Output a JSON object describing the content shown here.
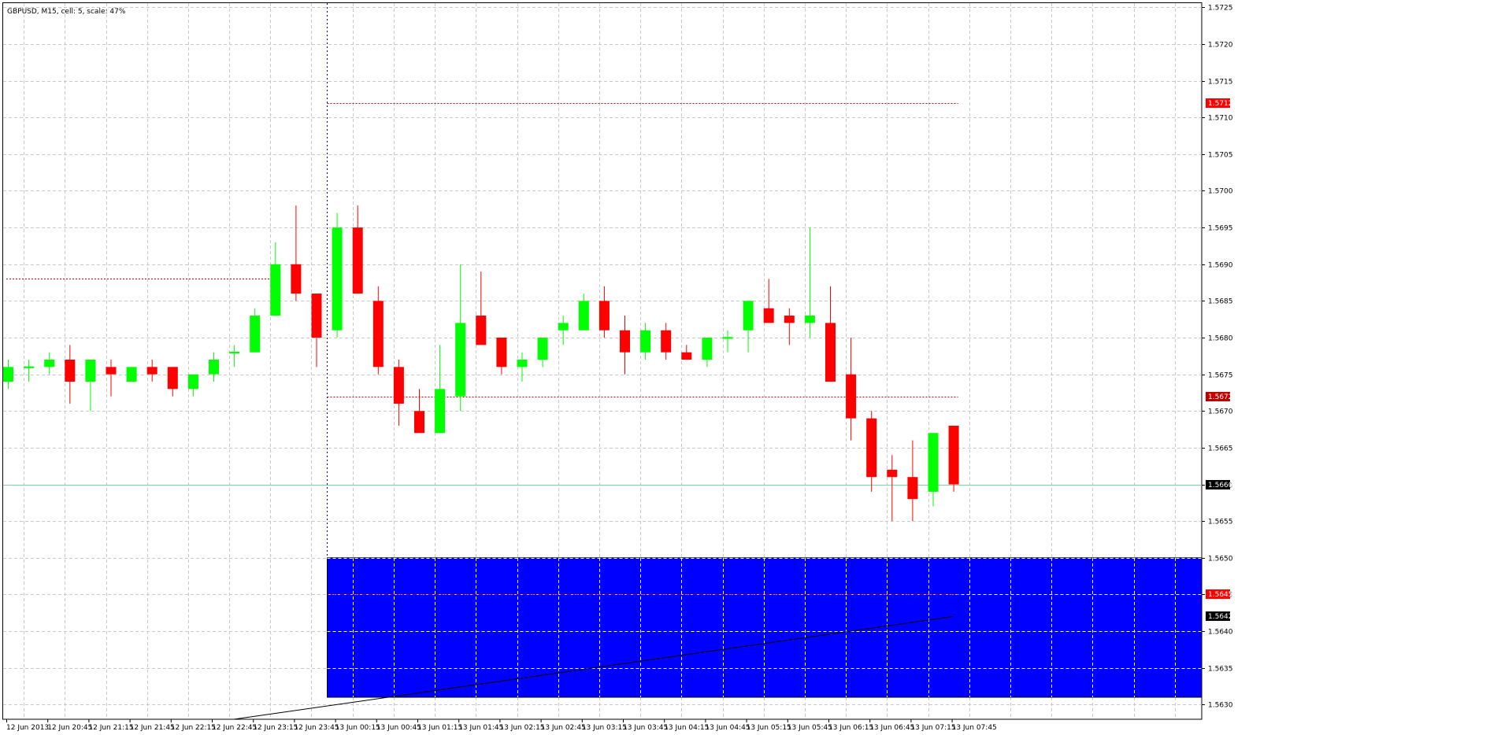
{
  "header": {
    "title": "GBPUSD, M15, cell: 5, scale: 47%"
  },
  "colors": {
    "bull": "#00ff00",
    "bear": "#ff0000",
    "zone": "#0000ff",
    "grid": "#c8c8c8",
    "level_line": "#c00000",
    "bid_line": "#7fd0a8",
    "crosshair": "#000080"
  },
  "chart_data": {
    "type": "candlestick",
    "symbol": "GBPUSD",
    "timeframe": "M15",
    "ylim": [
      1.5628,
      1.5726
    ],
    "y_ticks": [
      "1.5725",
      "1.5720",
      "1.5715",
      "1.5710",
      "1.5705",
      "1.5700",
      "1.5695",
      "1.5690",
      "1.5685",
      "1.5680",
      "1.5675",
      "1.5670",
      "1.5665",
      "1.5660",
      "1.5655",
      "1.5650",
      "1.5645",
      "1.5640",
      "1.5635",
      "1.5630"
    ],
    "x_labels": [
      "12 Jun 2013",
      "12 Jun 20:45",
      "12 Jun 21:15",
      "12 Jun 21:45",
      "12 Jun 22:15",
      "12 Jun 22:45",
      "12 Jun 23:15",
      "12 Jun 23:45",
      "13 Jun 00:15",
      "13 Jun 00:45",
      "13 Jun 01:15",
      "13 Jun 01:45",
      "13 Jun 02:15",
      "13 Jun 02:45",
      "13 Jun 03:15",
      "13 Jun 03:45",
      "13 Jun 04:15",
      "13 Jun 04:45",
      "13 Jun 05:15",
      "13 Jun 05:45",
      "13 Jun 06:15",
      "13 Jun 06:45",
      "13 Jun 07:15",
      "13 Jun 07:45"
    ],
    "candles": [
      {
        "o": 1.5674,
        "h": 1.5677,
        "l": 1.5673,
        "c": 1.5676
      },
      {
        "o": 1.5676,
        "h": 1.5677,
        "l": 1.5674,
        "c": 1.5676
      },
      {
        "o": 1.5676,
        "h": 1.5678,
        "l": 1.5675,
        "c": 1.5677
      },
      {
        "o": 1.5677,
        "h": 1.5679,
        "l": 1.5671,
        "c": 1.5674
      },
      {
        "o": 1.5674,
        "h": 1.5677,
        "l": 1.567,
        "c": 1.5677
      },
      {
        "o": 1.5676,
        "h": 1.5677,
        "l": 1.5672,
        "c": 1.5675
      },
      {
        "o": 1.5674,
        "h": 1.5676,
        "l": 1.5674,
        "c": 1.5676
      },
      {
        "o": 1.5676,
        "h": 1.5677,
        "l": 1.5674,
        "c": 1.5675
      },
      {
        "o": 1.5676,
        "h": 1.5676,
        "l": 1.5672,
        "c": 1.5673
      },
      {
        "o": 1.5673,
        "h": 1.5675,
        "l": 1.5672,
        "c": 1.5675
      },
      {
        "o": 1.5675,
        "h": 1.5678,
        "l": 1.5674,
        "c": 1.5677
      },
      {
        "o": 1.5678,
        "h": 1.5679,
        "l": 1.5676,
        "c": 1.5678
      },
      {
        "o": 1.5678,
        "h": 1.5684,
        "l": 1.5678,
        "c": 1.5683
      },
      {
        "o": 1.5683,
        "h": 1.5693,
        "l": 1.5683,
        "c": 1.569
      },
      {
        "o": 1.569,
        "h": 1.5698,
        "l": 1.5685,
        "c": 1.5686
      },
      {
        "o": 1.5686,
        "h": 1.5686,
        "l": 1.5676,
        "c": 1.568
      },
      {
        "o": 1.5681,
        "h": 1.5697,
        "l": 1.568,
        "c": 1.5695
      },
      {
        "o": 1.5695,
        "h": 1.5698,
        "l": 1.5686,
        "c": 1.5686
      },
      {
        "o": 1.5685,
        "h": 1.5687,
        "l": 1.5675,
        "c": 1.5676
      },
      {
        "o": 1.5676,
        "h": 1.5677,
        "l": 1.5668,
        "c": 1.5671
      },
      {
        "o": 1.567,
        "h": 1.5673,
        "l": 1.5667,
        "c": 1.5667
      },
      {
        "o": 1.5667,
        "h": 1.5679,
        "l": 1.5667,
        "c": 1.5673
      },
      {
        "o": 1.5672,
        "h": 1.569,
        "l": 1.567,
        "c": 1.5682
      },
      {
        "o": 1.5683,
        "h": 1.5689,
        "l": 1.5679,
        "c": 1.5679
      },
      {
        "o": 1.568,
        "h": 1.568,
        "l": 1.5675,
        "c": 1.5676
      },
      {
        "o": 1.5676,
        "h": 1.5678,
        "l": 1.5674,
        "c": 1.5677
      },
      {
        "o": 1.5677,
        "h": 1.568,
        "l": 1.5676,
        "c": 1.568
      },
      {
        "o": 1.5681,
        "h": 1.5683,
        "l": 1.5679,
        "c": 1.5682
      },
      {
        "o": 1.5681,
        "h": 1.5686,
        "l": 1.5681,
        "c": 1.5685
      },
      {
        "o": 1.5685,
        "h": 1.5687,
        "l": 1.568,
        "c": 1.5681
      },
      {
        "o": 1.5681,
        "h": 1.5683,
        "l": 1.5675,
        "c": 1.5678
      },
      {
        "o": 1.5678,
        "h": 1.5682,
        "l": 1.5677,
        "c": 1.5681
      },
      {
        "o": 1.5681,
        "h": 1.5682,
        "l": 1.5677,
        "c": 1.5678
      },
      {
        "o": 1.5678,
        "h": 1.5679,
        "l": 1.5677,
        "c": 1.5677
      },
      {
        "o": 1.5677,
        "h": 1.568,
        "l": 1.5676,
        "c": 1.568
      },
      {
        "o": 1.568,
        "h": 1.5681,
        "l": 1.5678,
        "c": 1.568
      },
      {
        "o": 1.5681,
        "h": 1.5685,
        "l": 1.5678,
        "c": 1.5685
      },
      {
        "o": 1.5684,
        "h": 1.5688,
        "l": 1.5682,
        "c": 1.5682
      },
      {
        "o": 1.5683,
        "h": 1.5684,
        "l": 1.5679,
        "c": 1.5682
      },
      {
        "o": 1.5682,
        "h": 1.5695,
        "l": 1.568,
        "c": 1.5683
      },
      {
        "o": 1.5682,
        "h": 1.5687,
        "l": 1.5674,
        "c": 1.5674
      },
      {
        "o": 1.5675,
        "h": 1.568,
        "l": 1.5666,
        "c": 1.5669
      },
      {
        "o": 1.5669,
        "h": 1.567,
        "l": 1.5659,
        "c": 1.5661
      },
      {
        "o": 1.5662,
        "h": 1.5664,
        "l": 1.5655,
        "c": 1.5661
      },
      {
        "o": 1.5661,
        "h": 1.5666,
        "l": 1.5655,
        "c": 1.5658
      },
      {
        "o": 1.5659,
        "h": 1.5667,
        "l": 1.5657,
        "c": 1.5667
      },
      {
        "o": 1.5668,
        "h": 1.5668,
        "l": 1.5659,
        "c": 1.566
      }
    ],
    "levels": [
      {
        "name": "upper-level",
        "price": 1.5712,
        "label": "1.5712",
        "style": "dotted",
        "badge_color": "#ff0000"
      },
      {
        "name": "middle-level",
        "price": 1.5672,
        "label": "1.5672",
        "style": "dotted",
        "badge_color": "#c00000"
      },
      {
        "name": "left-level",
        "price": 1.5688,
        "style": "dotted"
      },
      {
        "name": "zone-level",
        "price": 1.5645,
        "label": "1.5645",
        "style": "dotted",
        "badge_color": "#ff0000"
      }
    ],
    "current_price": {
      "price": 1.566,
      "label": "1.5660"
    },
    "trendline": {
      "label": "1.5642",
      "start": {
        "bar": 11,
        "price": 1.5628
      },
      "end": {
        "bar": 46,
        "price": 1.5642
      }
    },
    "zone": {
      "top": 1.565,
      "bottom": 1.5631,
      "start_bar": 15.5
    },
    "crosshair_bar": 15.5
  }
}
